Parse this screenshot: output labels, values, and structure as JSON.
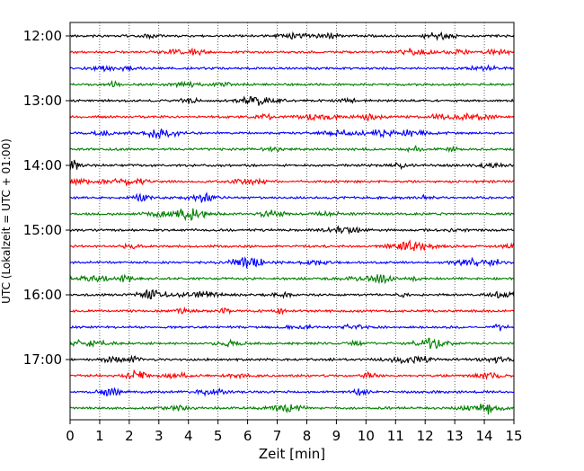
{
  "chart_data": {
    "type": "line",
    "chart_kind": "helicorder",
    "title": "",
    "xlabel": "Zeit  [min]",
    "ylabel": "UTC (Lokalzeit = UTC + 01:00)",
    "xlim": [
      0,
      15
    ],
    "x_ticks": [
      0,
      1,
      2,
      3,
      4,
      5,
      6,
      7,
      8,
      9,
      10,
      11,
      12,
      13,
      14,
      15
    ],
    "x_tick_labels": [
      "0",
      "1",
      "2",
      "3",
      "4",
      "5",
      "6",
      "7",
      "8",
      "9",
      "10",
      "11",
      "12",
      "13",
      "14",
      "15"
    ],
    "x_grid": "dotted vertical lines at each minute",
    "y_tick_labels": [
      "12:00",
      "13:00",
      "14:00",
      "15:00",
      "16:00",
      "17:00"
    ],
    "trace_interval_minutes": 15,
    "trace_start": "12:00",
    "trace_count": 24,
    "trace_colors": [
      "#000000",
      "#ff0000",
      "#0000ff",
      "#008000"
    ],
    "legend": "none",
    "traces": [
      {
        "start": "12:00",
        "color": "#000000"
      },
      {
        "start": "12:15",
        "color": "#ff0000"
      },
      {
        "start": "12:30",
        "color": "#0000ff"
      },
      {
        "start": "12:45",
        "color": "#008000"
      },
      {
        "start": "13:00",
        "color": "#000000"
      },
      {
        "start": "13:15",
        "color": "#ff0000"
      },
      {
        "start": "13:30",
        "color": "#0000ff"
      },
      {
        "start": "13:45",
        "color": "#008000"
      },
      {
        "start": "14:00",
        "color": "#000000"
      },
      {
        "start": "14:15",
        "color": "#ff0000"
      },
      {
        "start": "14:30",
        "color": "#0000ff"
      },
      {
        "start": "14:45",
        "color": "#008000"
      },
      {
        "start": "15:00",
        "color": "#000000"
      },
      {
        "start": "15:15",
        "color": "#ff0000"
      },
      {
        "start": "15:30",
        "color": "#0000ff"
      },
      {
        "start": "15:45",
        "color": "#008000"
      },
      {
        "start": "16:00",
        "color": "#000000"
      },
      {
        "start": "16:15",
        "color": "#ff0000"
      },
      {
        "start": "16:30",
        "color": "#0000ff"
      },
      {
        "start": "16:45",
        "color": "#008000"
      },
      {
        "start": "17:00",
        "color": "#000000"
      },
      {
        "start": "17:15",
        "color": "#ff0000"
      },
      {
        "start": "17:30",
        "color": "#0000ff"
      },
      {
        "start": "17:45",
        "color": "#008000"
      }
    ]
  }
}
